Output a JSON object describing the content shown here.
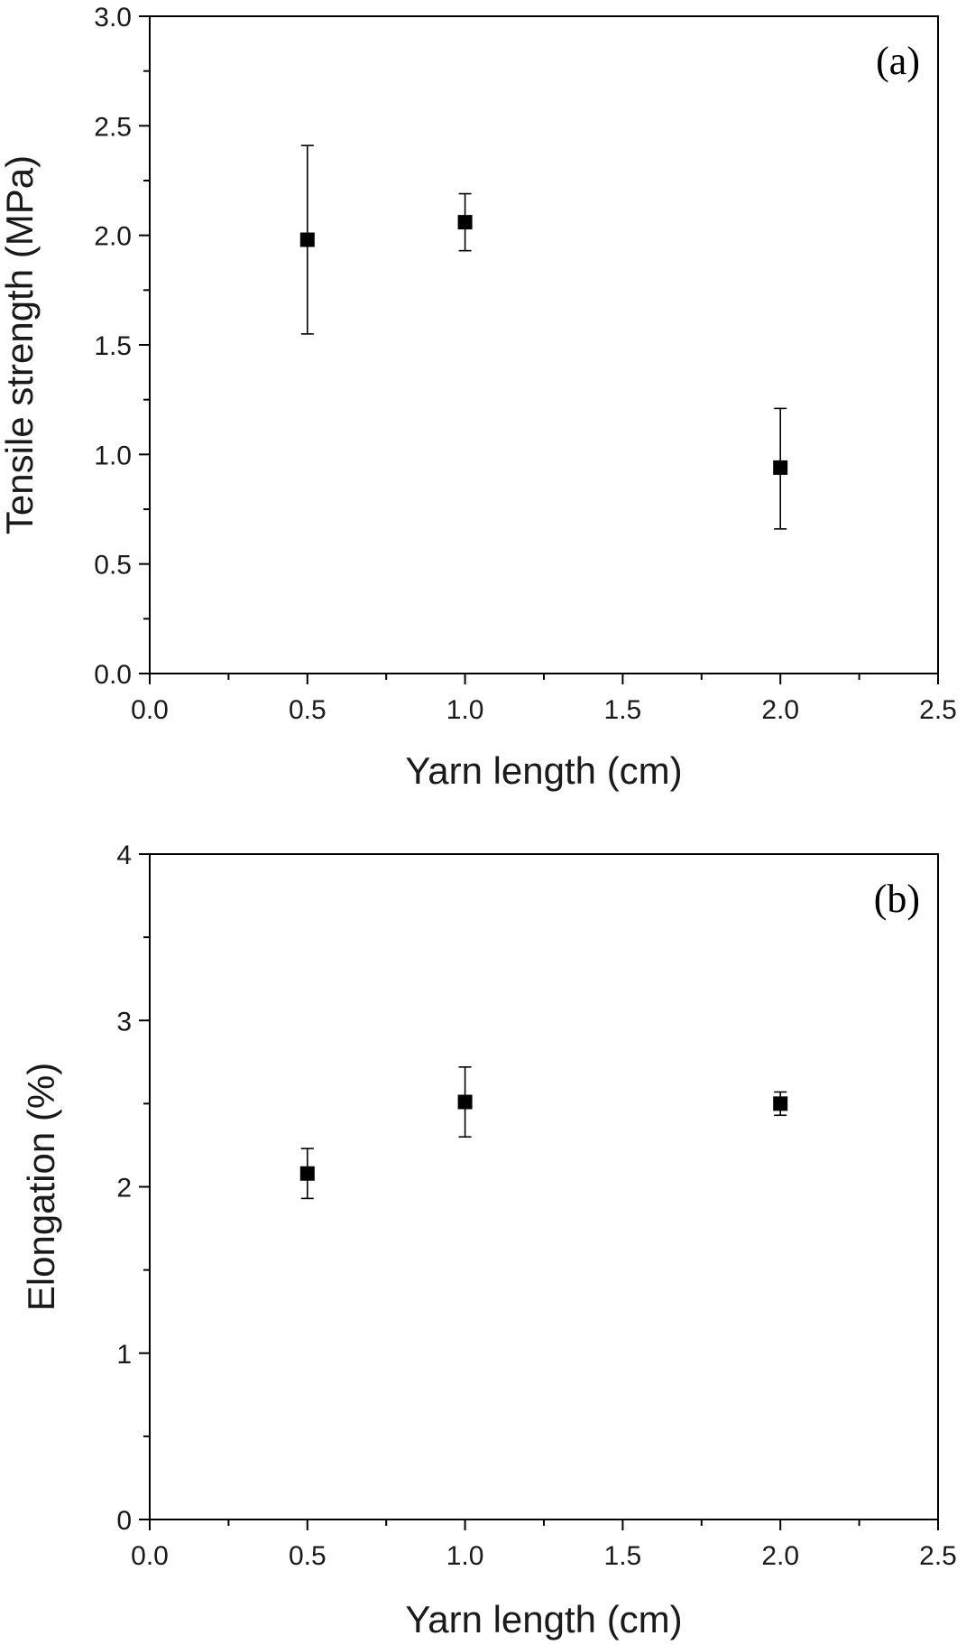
{
  "chart_data": [
    {
      "type": "scatter",
      "panel_label": "(a)",
      "xlabel": "Yarn length (cm)",
      "ylabel": "Tensile strength (MPa)",
      "xlim": [
        0,
        2.5
      ],
      "ylim": [
        0,
        3
      ],
      "x_ticks": [
        "0.0",
        "0.5",
        "1.0",
        "1.5",
        "2.0",
        "2.5"
      ],
      "y_ticks": [
        "0.0",
        "0.5",
        "1.0",
        "1.5",
        "2.0",
        "2.5",
        "3.0"
      ],
      "grid": false,
      "marker": "square",
      "color": "#000000",
      "points": [
        {
          "x": 0.5,
          "y": 1.98,
          "err_low": 1.55,
          "err_high": 2.41
        },
        {
          "x": 1.0,
          "y": 2.06,
          "err_low": 1.93,
          "err_high": 2.19
        },
        {
          "x": 2.0,
          "y": 0.94,
          "err_low": 0.66,
          "err_high": 1.21
        }
      ]
    },
    {
      "type": "scatter",
      "panel_label": "(b)",
      "xlabel": "Yarn length (cm)",
      "ylabel": "Elongation (%)",
      "xlim": [
        0,
        2.5
      ],
      "ylim": [
        0,
        4
      ],
      "x_ticks": [
        "0.0",
        "0.5",
        "1.0",
        "1.5",
        "2.0",
        "2.5"
      ],
      "y_ticks": [
        "0",
        "1",
        "2",
        "3",
        "4"
      ],
      "grid": false,
      "marker": "square",
      "color": "#000000",
      "points": [
        {
          "x": 0.5,
          "y": 2.08,
          "err_low": 1.93,
          "err_high": 2.23
        },
        {
          "x": 1.0,
          "y": 2.51,
          "err_low": 2.3,
          "err_high": 2.72
        },
        {
          "x": 2.0,
          "y": 2.5,
          "err_low": 2.43,
          "err_high": 2.57
        }
      ]
    }
  ]
}
